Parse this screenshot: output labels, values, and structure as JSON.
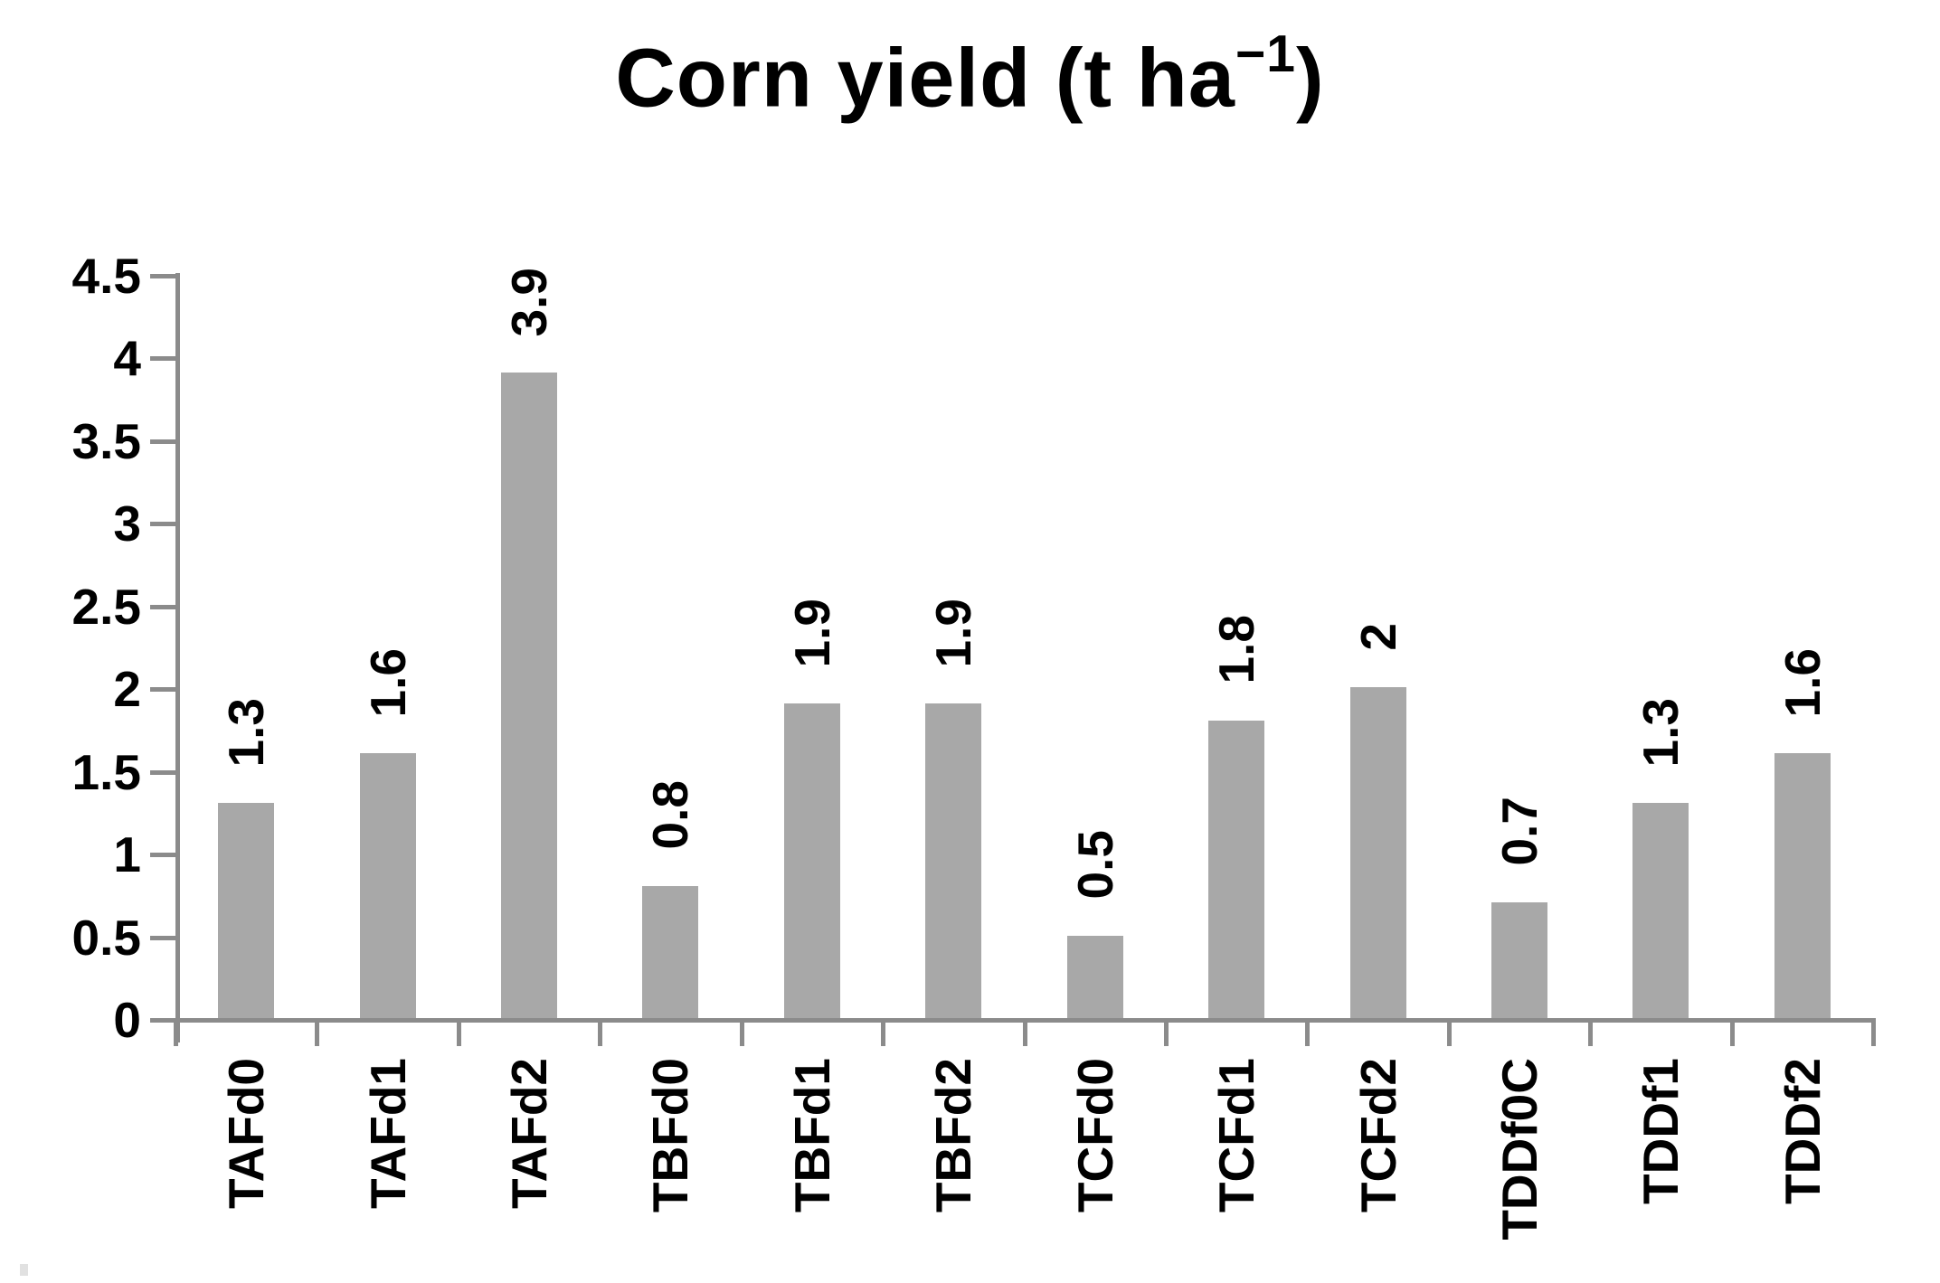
{
  "title": {
    "pre": "Corn yield (t ha",
    "sup": "−1",
    "post": ")"
  },
  "chart_data": {
    "type": "bar",
    "title": "Corn yield (t ha⁻¹)",
    "categories": [
      "TAFd0",
      "TAFd1",
      "TAFd2",
      "TBFd0",
      "TBFd1",
      "TBFd2",
      "TCFd0",
      "TCFd1",
      "TCFd2",
      "TDDf0C",
      "TDDf1",
      "TDDf2"
    ],
    "values": [
      1.3,
      1.6,
      3.9,
      0.8,
      1.9,
      1.9,
      0.5,
      1.8,
      2,
      0.7,
      1.3,
      1.6
    ],
    "data_labels": [
      "1.3",
      "1.6",
      "3.9",
      "0.8",
      "1.9",
      "1.9",
      "0.5",
      "1.8",
      "2",
      "0.7",
      "1.3",
      "1.6"
    ],
    "ytick_labels": [
      "0",
      "0.5",
      "1",
      "1.5",
      "2",
      "2.5",
      "3",
      "3.5",
      "4",
      "4.5"
    ],
    "ylim": [
      0,
      4.5
    ],
    "xlabel": "",
    "ylabel": "",
    "grid": false,
    "legend": false,
    "x_labels_rotated_degrees": 90,
    "data_labels_rotated_degrees": 90,
    "bar_color": "#a8a8a8",
    "axis_color": "#8b8b8b",
    "text_color": "#000000",
    "background_color": "#ffffff"
  }
}
